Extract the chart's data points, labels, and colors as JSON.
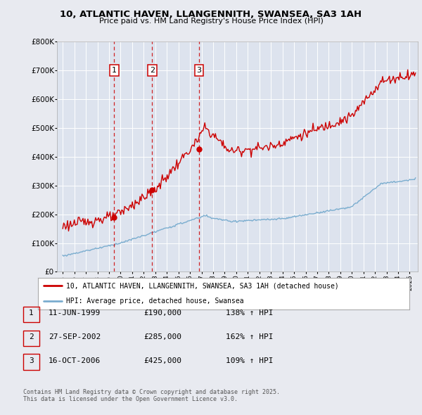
{
  "title_line1": "10, ATLANTIC HAVEN, LLANGENNITH, SWANSEA, SA3 1AH",
  "title_line2": "Price paid vs. HM Land Registry's House Price Index (HPI)",
  "background_color": "#e8eaf0",
  "plot_bg_color": "#dde3ee",
  "grid_color": "#ffffff",
  "red_line_color": "#cc0000",
  "blue_line_color": "#7aadcf",
  "sale_points": [
    {
      "date_num": 1999.44,
      "value": 190000,
      "label": "1"
    },
    {
      "date_num": 2002.74,
      "value": 285000,
      "label": "2"
    },
    {
      "date_num": 2006.79,
      "value": 425000,
      "label": "3"
    }
  ],
  "legend_entries": [
    {
      "color": "#cc0000",
      "text": "10, ATLANTIC HAVEN, LLANGENNITH, SWANSEA, SA3 1AH (detached house)"
    },
    {
      "color": "#7aadcf",
      "text": "HPI: Average price, detached house, Swansea"
    }
  ],
  "table_entries": [
    {
      "num": "1",
      "date": "11-JUN-1999",
      "price": "£190,000",
      "hpi": "138% ↑ HPI"
    },
    {
      "num": "2",
      "date": "27-SEP-2002",
      "price": "£285,000",
      "hpi": "162% ↑ HPI"
    },
    {
      "num": "3",
      "date": "16-OCT-2006",
      "price": "£425,000",
      "hpi": "109% ↑ HPI"
    }
  ],
  "footnote": "Contains HM Land Registry data © Crown copyright and database right 2025.\nThis data is licensed under the Open Government Licence v3.0.",
  "ylim": [
    0,
    800000
  ],
  "xlim_start": 1994.5,
  "xlim_end": 2025.7
}
